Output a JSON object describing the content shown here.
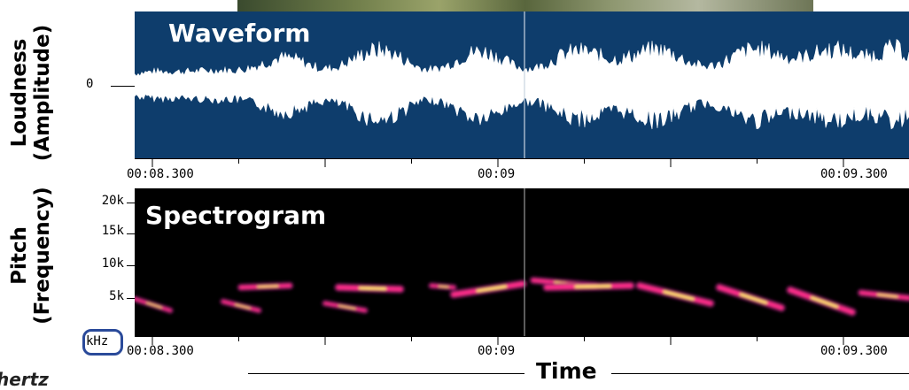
{
  "waveform": {
    "title": "Waveform",
    "y_label_line1": "Loudness",
    "y_label_line2": "(Amplitude)",
    "zero_label": "0",
    "colors": {
      "background": "#0e3d6c",
      "signal": "#ffffff"
    }
  },
  "spectrogram": {
    "title": "Spectrogram",
    "y_label_line1": "Pitch",
    "y_label_line2": "(Frequency)",
    "y_ticks": [
      "20k",
      "15k",
      "10k",
      "5k"
    ],
    "unit_label": "kHz",
    "colors": {
      "background": "#000000",
      "energy": "#ff2e8a",
      "peak": "#ffee66"
    }
  },
  "time_axis": {
    "ticks": [
      "00:08.300",
      "00:09",
      "00:09.300"
    ],
    "label": "Time"
  },
  "footer": {
    "cut_label": "hertz"
  }
}
